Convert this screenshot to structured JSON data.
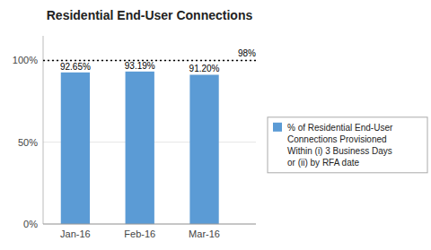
{
  "chart_data": {
    "type": "bar",
    "title": "Residential End-User Connections",
    "categories": [
      "Jan-16",
      "Feb-16",
      "Mar-16"
    ],
    "series": [
      {
        "name": "% of Residential End-User\nConnections Provisioned\nWithin (i) 3 Business Days\nor (ii) by RFA date",
        "color": "#5B9BD5",
        "values": [
          92.65,
          93.19,
          91.2
        ],
        "value_labels": [
          "92.65%",
          "93.19%",
          "91.20%"
        ]
      }
    ],
    "ylim": [
      0,
      115
    ],
    "yticks": [
      {
        "value": 0,
        "label": "0%"
      },
      {
        "value": 50,
        "label": "50%"
      },
      {
        "value": 100,
        "label": "100%"
      }
    ],
    "data_labels": true,
    "legend": "right",
    "annotations": [
      {
        "label": "98%",
        "y": 100
      }
    ]
  }
}
